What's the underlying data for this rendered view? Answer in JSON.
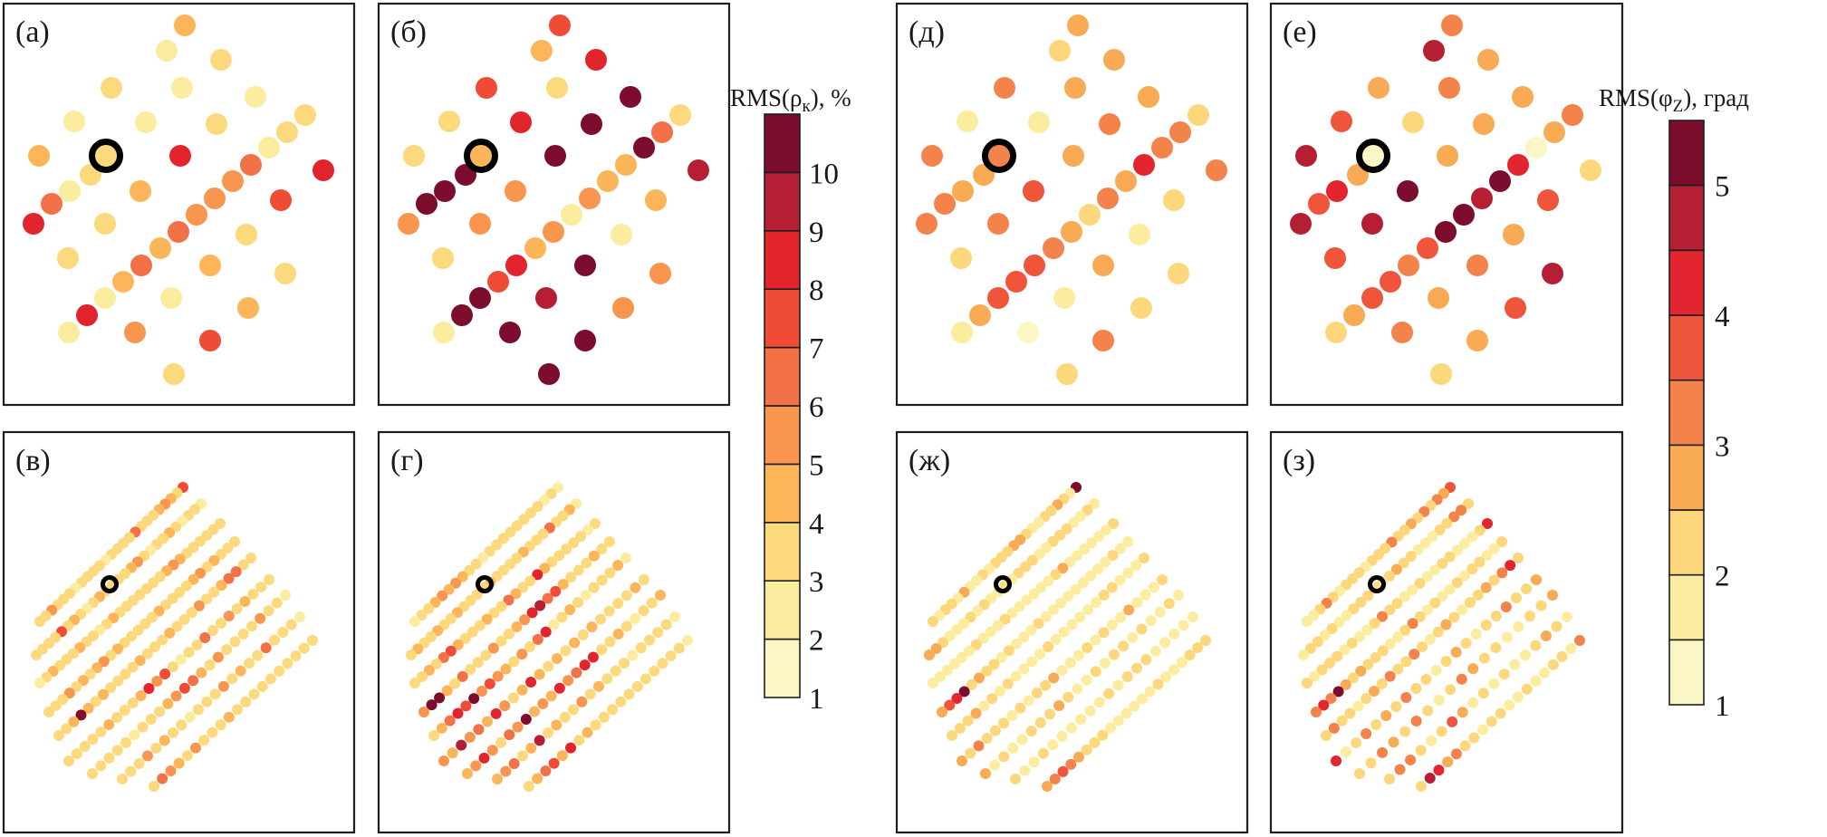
{
  "figure": {
    "colorbars": [
      {
        "id": "rho",
        "title_main": "RMS(ρ",
        "title_sub": "к",
        "title_tail": "), %",
        "bin_edges": [
          1,
          2,
          3,
          4,
          5,
          6,
          7,
          8,
          9,
          10,
          11
        ],
        "tick_labels": [
          "1",
          "2",
          "3",
          "4",
          "5",
          "6",
          "7",
          "8",
          "9",
          "10"
        ],
        "tick_values": [
          1,
          2,
          3,
          4,
          5,
          6,
          7,
          8,
          9,
          10
        ],
        "colors": [
          "#fbf6c6",
          "#fcec9f",
          "#fdd97e",
          "#fdb55a",
          "#f89650",
          "#f37146",
          "#ef4b37",
          "#e2242c",
          "#b41f33",
          "#7c0d2c"
        ]
      },
      {
        "id": "phi",
        "title_main": "RMS(φ",
        "title_sub": "Z",
        "title_tail": "), град",
        "bin_edges": [
          1,
          1.5,
          2,
          2.5,
          3,
          3.5,
          4,
          4.5,
          5,
          5.5
        ],
        "tick_labels": [
          "1",
          "2",
          "3",
          "4",
          "5"
        ],
        "tick_values": [
          1,
          2,
          3,
          4,
          5
        ],
        "colors": [
          "#fbf6c6",
          "#fcec9f",
          "#fdd77b",
          "#f8aa54",
          "#f3834a",
          "#ef553b",
          "#e2252e",
          "#b41f33",
          "#7c0d2c"
        ]
      }
    ]
  },
  "chart_data": [
    {
      "type": "scatter",
      "panel": "(а)",
      "colorbar": "rho",
      "description": "Sparse grid, RMS(ρк) per station (value = bin midpoint, %)",
      "highlight_index": 13,
      "values": [
        4.5,
        2.5,
        3.5,
        3.5,
        2.5,
        2.5,
        2.5,
        2.5,
        3.5,
        3.5,
        4.5,
        2.5,
        3.5,
        3.5,
        8.5,
        8.0,
        3.5,
        2.5,
        6.5,
        8.5,
        4.5,
        3.5,
        6.5,
        5.5,
        5.5,
        5.5,
        6.5,
        4.5,
        6.5,
        4.5,
        7.5,
        2.5,
        8.5,
        3.5,
        3.5,
        4.5,
        3.0,
        2.0,
        4.5,
        2.5,
        5.0,
        7.0,
        3.0
      ]
    },
    {
      "type": "scatter",
      "panel": "(б)",
      "colorbar": "rho",
      "description": "Sparse grid, RMS(ρк) per station",
      "highlight_index": 13,
      "values": [
        7.5,
        4.5,
        8.5,
        7.5,
        3.0,
        10.5,
        3.0,
        8.5,
        10.5,
        3.0,
        3.0,
        10.5,
        6.5,
        4.5,
        10.5,
        9.5,
        10.5,
        10.5,
        10.5,
        5.5,
        5.5,
        5.5,
        4.0,
        4.0,
        5.5,
        2.5,
        5.5,
        4.5,
        8.5,
        7.5,
        4.5,
        10.5,
        10.5,
        2.5,
        3.0,
        10.5,
        5.5,
        9.5,
        5.5,
        2.0,
        10.5,
        10.5,
        10.5
      ]
    },
    {
      "type": "scatter",
      "panel": "(д)",
      "colorbar": "phi",
      "description": "Sparse grid, RMS(φZ) per station (value in degrees)",
      "highlight_index": 13,
      "values": [
        2.8,
        2.2,
        2.8,
        3.3,
        2.6,
        2.7,
        1.7,
        1.5,
        3.2,
        2.2,
        3.2,
        3.4,
        3.2,
        3.4,
        2.9,
        3.0,
        2.9,
        2.9,
        3.4,
        3.0,
        3.8,
        3.1,
        4.2,
        2.9,
        3.1,
        2.4,
        2.7,
        3.1,
        3.6,
        3.8,
        2.2,
        3.6,
        2.6,
        1.6,
        2.4,
        2.7,
        2.1,
        1.6,
        2.4,
        1.6,
        1.3,
        3.4,
        2.4
      ]
    },
    {
      "type": "scatter",
      "panel": "(е)",
      "colorbar": "phi",
      "description": "Sparse grid, RMS(φZ) per station (value in degrees)",
      "highlight_index": 13,
      "values": [
        3.1,
        4.7,
        2.7,
        2.9,
        3.1,
        2.9,
        3.7,
        2.2,
        2.9,
        3.3,
        4.7,
        1.3,
        2.9,
        1.3,
        2.6,
        2.2,
        2.8,
        4.2,
        3.6,
        4.6,
        5.2,
        4.6,
        4.3,
        5.2,
        4.6,
        5.2,
        5.4,
        3.5,
        3.3,
        3.6,
        3.9,
        3.6,
        2.9,
        2.8,
        3.5,
        3.3,
        4.9,
        2.8,
        3.8,
        2.1,
        3.1,
        2.9,
        2.3
      ]
    },
    {
      "type": "scatter",
      "panel": "(в)",
      "colorbar": "rho",
      "description": "Dense grid of 9 profiles, RMS(ρк); station value bins per profile (NE→SW)",
      "profiles": [
        [
          7.5,
          3.0,
          4.5,
          5.5,
          4.5,
          3.5,
          3.0,
          3.5,
          6.5,
          3.5,
          3.0,
          3.5,
          3.5,
          2.5,
          3.0,
          3.5,
          3.5,
          3.0,
          2.5,
          3.5,
          3.0,
          3.5,
          5.5,
          3.5,
          3.5
        ],
        [
          2.5,
          3.0,
          3.5,
          2.5,
          3.0,
          4.5,
          3.5,
          3.0,
          2.5,
          3.5,
          5.5,
          4.5,
          3.5,
          3.5,
          3.0,
          3.5,
          4.5,
          3.0,
          2.5,
          3.5,
          4.5,
          3.5,
          7.5,
          3.5,
          3.5,
          3.0,
          3.5
        ],
        [
          3.0,
          3.5,
          3.0,
          3.5,
          3.5,
          3.5,
          4.5,
          5.5,
          4.5,
          3.0,
          3.5,
          3.5,
          3.5,
          3.0,
          3.5,
          3.5,
          4.5,
          3.5,
          2.5,
          3.5,
          3.5,
          4.5,
          3.5,
          3.5,
          3.5,
          4.5,
          3.5,
          2.0
        ],
        [
          3.0,
          3.5,
          3.5,
          4.5,
          3.5,
          5.5,
          4.5,
          3.5,
          3.0,
          3.5,
          3.5,
          4.5,
          3.5,
          3.5,
          3.0,
          3.5,
          3.5,
          4.5,
          3.5,
          5.5,
          4.5,
          3.5,
          4.5,
          3.5,
          5.5,
          3.5,
          3.0,
          3.0
        ],
        [
          3.0,
          3.5,
          6.0,
          6.5,
          4.5,
          3.5,
          3.5,
          5.5,
          3.5,
          3.5,
          3.5,
          4.5,
          3.5,
          3.5,
          3.5,
          4.5,
          3.5,
          3.0,
          3.5,
          3.5,
          4.5,
          3.5,
          4.5,
          10.5,
          4.5,
          3.5,
          3.5
        ],
        [
          3.5,
          3.5,
          3.5,
          4.5,
          3.5,
          5.5,
          3.5,
          3.5,
          6.5,
          3.5,
          3.0,
          2.5,
          3.5,
          7.5,
          5.5,
          8.5,
          4.5,
          3.5,
          3.0,
          3.5,
          4.5,
          3.5,
          3.5,
          3.5,
          3.0,
          3.5
        ],
        [
          2.5,
          3.5,
          3.5,
          5.5,
          3.5,
          3.0,
          3.5,
          3.5,
          5.5,
          3.5,
          4.5,
          6.5,
          7.0,
          5.5,
          4.5,
          3.5,
          3.5,
          3.0,
          2.5,
          3.5,
          3.5,
          3.5,
          3.5,
          3.5
        ],
        [
          2.5,
          3.0,
          3.5,
          3.5,
          6.0,
          3.5,
          3.5,
          4.5,
          3.5,
          5.5,
          3.5,
          3.0,
          3.5,
          2.5,
          3.5,
          3.5,
          4.5,
          3.5,
          5.5,
          3.0,
          3.5,
          3.5
        ],
        [
          3.0,
          3.5,
          3.5,
          3.5,
          3.5,
          3.0,
          3.5,
          3.5,
          3.0,
          3.5,
          4.5,
          3.5,
          3.5,
          3.5,
          5.5,
          3.5,
          4.5,
          5.5,
          6.0,
          3.5
        ]
      ]
    },
    {
      "type": "scatter",
      "panel": "(г)",
      "colorbar": "rho",
      "description": "Dense grid of 9 profiles, RMS(ρк); station value bins per profile (NE→SW)",
      "profiles": [
        [
          2.5,
          3.0,
          2.5,
          3.5,
          3.5,
          3.0,
          3.5,
          3.0,
          3.5,
          3.5,
          3.0,
          2.5,
          3.0,
          3.5,
          4.5,
          5.5,
          4.5,
          5.5,
          4.5,
          3.5,
          3.0,
          2.0
        ],
        [
          2.0,
          4.5,
          3.5,
          3.0,
          6.5,
          3.5,
          3.0,
          3.5,
          4.5,
          3.5,
          3.5,
          3.0,
          3.5,
          4.5,
          3.5,
          3.5,
          3.0,
          3.5,
          4.5,
          3.0,
          3.5,
          4.5,
          3.0,
          3.5,
          4.5,
          3.0
        ],
        [
          3.0,
          2.5,
          3.5,
          3.0,
          3.5,
          3.5,
          3.5,
          4.5,
          8.5,
          3.5,
          3.5,
          4.5,
          6.5,
          3.5,
          3.5,
          4.5,
          3.5,
          3.0,
          3.5,
          4.5,
          7.5,
          6.5,
          3.5,
          4.5,
          3.5,
          3.0
        ],
        [
          3.5,
          3.5,
          4.5,
          3.5,
          3.0,
          3.5,
          4.5,
          7.5,
          6.5,
          9.5,
          8.0,
          5.5,
          4.5,
          3.5,
          3.5,
          5.5,
          3.5,
          3.5,
          3.5,
          6.5,
          3.5,
          4.5,
          10.5,
          10.5,
          5.5
        ],
        [
          2.5,
          4.5,
          3.5,
          3.0,
          3.5,
          2.5,
          3.5,
          4.5,
          3.0,
          2.5,
          8.0,
          6.5,
          3.5,
          5.5,
          3.5,
          4.5,
          5.5,
          7.5,
          5.5,
          10.5,
          7.5,
          8.5,
          6.5,
          4.5,
          3.0
        ],
        [
          3.5,
          4.5,
          3.5,
          3.0,
          3.5,
          3.5,
          4.5,
          3.5,
          4.5,
          3.5,
          4.5,
          3.5,
          4.5,
          8.5,
          4.5,
          3.5,
          5.5,
          8.5,
          4.5,
          6.5,
          5.5,
          9.5,
          4.5,
          5.5
        ],
        [
          4.5,
          3.5,
          3.0,
          2.5,
          3.5,
          4.5,
          3.5,
          3.5,
          8.5,
          8.0,
          6.5,
          5.5,
          8.5,
          4.5,
          5.5,
          4.5,
          10.5,
          5.5,
          6.5,
          3.5,
          5.5,
          8.5,
          5.5,
          4.5
        ],
        [
          2.5,
          3.0,
          3.5,
          3.5,
          3.0,
          2.5,
          3.5,
          3.5,
          3.5,
          4.5,
          3.5,
          5.5,
          3.5,
          3.5,
          4.5,
          3.5,
          9.5,
          4.5,
          3.5,
          6.5,
          5.5,
          4.5
        ],
        [
          2.5,
          3.0,
          3.5,
          3.0,
          3.5,
          3.5,
          3.5,
          3.5,
          3.0,
          3.5,
          3.5,
          3.5,
          4.5,
          3.5,
          8.5,
          4.5,
          7.0,
          6.5,
          4.5,
          3.0
        ]
      ]
    },
    {
      "type": "scatter",
      "panel": "(ж)",
      "colorbar": "phi",
      "description": "Dense grid of 9 profiles, RMS(φZ); station values per profile (NE→SW)",
      "profiles": [
        [
          5.3,
          1.7,
          2.3,
          2.8,
          2.3,
          2.0,
          1.5,
          1.7,
          2.3,
          2.8,
          2.8,
          2.0,
          2.3,
          2.0,
          1.5,
          2.0,
          1.5,
          1.5,
          2.8,
          1.5,
          2.0,
          2.3,
          1.5,
          2.3
        ],
        [
          1.5,
          2.0,
          1.5,
          1.5,
          2.0,
          2.3,
          2.3,
          1.5,
          1.7,
          2.3,
          2.3,
          2.3,
          1.7,
          1.5,
          1.5,
          1.7,
          2.0,
          1.5,
          2.3,
          1.5,
          1.5,
          1.7,
          2.3,
          2.8,
          2.8
        ],
        [
          2.0,
          1.5,
          1.5,
          1.5,
          1.5,
          1.7,
          1.5,
          2.8,
          2.3,
          1.5,
          1.5,
          1.7,
          1.5,
          1.5,
          1.5,
          2.0,
          1.5,
          1.7,
          1.5,
          2.0,
          1.5,
          1.5,
          1.5,
          1.7,
          1.5,
          1.7
        ],
        [
          1.7,
          1.5,
          2.0,
          1.5,
          1.5,
          1.5,
          1.5,
          1.5,
          1.7,
          1.5,
          1.5,
          1.5,
          2.0,
          1.5,
          1.5,
          1.5,
          2.3,
          1.5,
          2.0,
          2.3,
          2.8,
          2.0,
          5.3,
          4.2,
          3.8,
          2.8
        ],
        [
          2.0,
          1.5,
          1.7,
          1.5,
          2.0,
          2.3,
          1.5,
          1.7,
          1.5,
          1.5,
          1.5,
          1.7,
          2.0,
          1.5,
          1.7,
          1.5,
          1.7,
          2.0,
          1.5,
          2.0,
          1.5,
          2.8,
          2.0,
          2.3,
          2.3
        ],
        [
          2.0,
          1.5,
          1.5,
          1.7,
          2.8,
          1.5,
          1.5,
          2.3,
          1.5,
          2.0,
          1.5,
          1.5,
          1.5,
          2.8,
          2.0,
          2.0,
          1.7,
          2.0,
          1.7,
          2.0,
          2.3,
          2.0,
          3.3,
          2.3,
          2.8
        ],
        [
          1.7,
          2.0,
          1.5,
          1.5,
          2.0,
          1.5,
          2.3,
          2.0,
          1.5,
          2.3,
          1.5,
          1.5,
          2.0,
          2.8,
          2.3,
          2.3,
          2.0,
          1.5,
          1.5,
          2.3,
          1.7,
          2.8
        ],
        [
          1.7,
          1.5,
          1.5,
          1.5,
          1.5,
          2.3,
          2.0,
          2.3,
          1.7,
          2.0,
          1.5,
          1.5,
          1.7,
          1.5,
          1.5,
          1.5,
          2.3,
          1.7,
          1.5,
          2.3
        ],
        [
          2.0,
          2.3,
          2.0,
          1.5,
          1.5,
          1.7,
          2.0,
          1.5,
          1.5,
          1.7,
          1.5,
          1.5,
          1.7,
          2.0,
          2.0,
          2.3,
          2.8,
          3.3,
          3.8,
          3.3,
          2.8
        ]
      ]
    },
    {
      "type": "scatter",
      "panel": "(з)",
      "colorbar": "phi",
      "description": "Dense grid of 9 profiles, RMS(φZ); station values per profile (NE→SW)",
      "profiles": [
        [
          3.8,
          2.8,
          3.0,
          2.0,
          3.3,
          2.3,
          2.8,
          2.3,
          2.0,
          3.3,
          2.3,
          2.0,
          2.3,
          1.7,
          2.3,
          2.0,
          2.3,
          1.7,
          2.3,
          3.3,
          2.0,
          1.7,
          1.5
        ],
        [
          2.3,
          3.0,
          3.0,
          2.0,
          2.3,
          1.7,
          1.7,
          1.5,
          2.3,
          2.0,
          2.8,
          2.3,
          1.7,
          1.7,
          2.3,
          2.0,
          2.3,
          1.5,
          1.7,
          2.0,
          1.7,
          2.3,
          2.0,
          1.5
        ],
        [
          4.2,
          2.3,
          1.7,
          1.7,
          1.7,
          2.0,
          2.0,
          1.7,
          1.5,
          2.0,
          1.7,
          1.5,
          2.0,
          2.3,
          3.0,
          2.3,
          1.5,
          1.7,
          2.0,
          1.7,
          2.0,
          2.3,
          2.0,
          1.7,
          2.3
        ],
        [
          2.0,
          1.5,
          1.7,
          2.0,
          2.3,
          1.7,
          2.0,
          1.5,
          1.7,
          2.3,
          1.5,
          2.0,
          3.0,
          2.3,
          1.5,
          1.7,
          2.0,
          2.3,
          2.0,
          2.8,
          2.0,
          2.8,
          5.3,
          3.3,
          4.2,
          3.0
        ],
        [
          2.3,
          4.2,
          3.0,
          2.3,
          2.8,
          2.0,
          2.3,
          1.7,
          2.0,
          2.8,
          2.3,
          1.5,
          2.3,
          3.0,
          2.3,
          2.0,
          3.3,
          2.3,
          2.8,
          2.0,
          1.5,
          2.3,
          2.0,
          3.3,
          2.3
        ],
        [
          2.8,
          2.3,
          2.0,
          3.3,
          2.3,
          2.0,
          1.5,
          2.0,
          2.8,
          2.3,
          1.5,
          2.0,
          2.3,
          3.0,
          2.3,
          2.8,
          2.3,
          3.0,
          2.3,
          1.7,
          4.2
        ],
        [
          2.8,
          2.0,
          2.3,
          1.5,
          1.7,
          2.0,
          2.3,
          2.8,
          3.0,
          2.0,
          1.7,
          2.3,
          3.0,
          2.3,
          2.8,
          3.3,
          2.0,
          2.3
        ],
        [
          1.7,
          2.3,
          2.8,
          2.0,
          1.7,
          1.5,
          2.3,
          1.7,
          2.3,
          1.5,
          2.8,
          3.8,
          2.0,
          1.7,
          2.3,
          3.0,
          3.3,
          2.3
        ],
        [
          3.0,
          1.7,
          2.0,
          2.3,
          1.7,
          1.5,
          2.0,
          1.7,
          1.5,
          2.3,
          2.0,
          1.5,
          2.3,
          2.0,
          3.3,
          2.8,
          4.3,
          4.7,
          2.0
        ]
      ]
    }
  ],
  "panels": [
    {
      "label": "(а)"
    },
    {
      "label": "(б)"
    },
    {
      "label": "(в)"
    },
    {
      "label": "(г)"
    },
    {
      "label": "(д)"
    },
    {
      "label": "(е)"
    },
    {
      "label": "(ж)"
    },
    {
      "label": "(з)"
    }
  ]
}
